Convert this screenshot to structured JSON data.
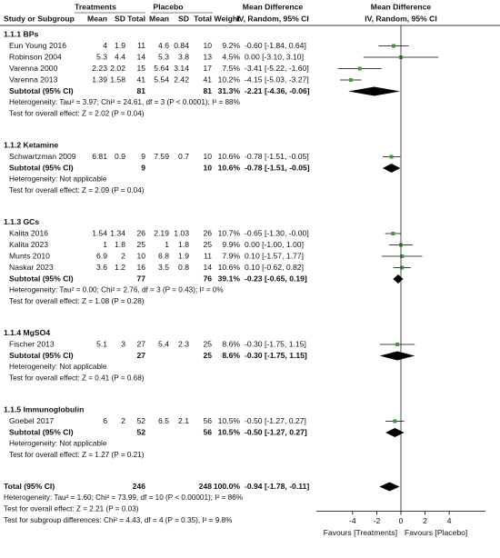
{
  "header": {
    "treat": "Treatments",
    "placebo": "Placebo",
    "md_title": "Mean Difference",
    "md_title_plot": "Mean Difference",
    "columns": [
      "Study or Subgroup",
      "Mean",
      "SD",
      "Total",
      "Mean",
      "SD",
      "Total",
      "Weight",
      "IV, Random, 95% CI",
      "IV, Random, 95% CI"
    ]
  },
  "subgroups": [
    {
      "title": "1.1.1 BPs",
      "studies": [
        {
          "study": "Eun Young 2016",
          "m1": "4",
          "sd1": "1.9",
          "n1": "11",
          "m2": "4.6",
          "sd2": "0.84",
          "n2": "10",
          "weight": "9.2%",
          "ci": "-0.60 [-1.84, 0.64]",
          "md": -0.6,
          "lo": -1.84,
          "hi": 0.64
        },
        {
          "study": "Robinson 2004",
          "m1": "5.3",
          "sd1": "4.4",
          "n1": "14",
          "m2": "5.3",
          "sd2": "3.8",
          "n2": "13",
          "weight": "4.5%",
          "ci": "0.00 [-3.10, 3.10]",
          "md": 0,
          "lo": -3.1,
          "hi": 3.1
        },
        {
          "study": "Varenna 2000",
          "m1": "2.23",
          "sd1": "2.02",
          "n1": "15",
          "m2": "5.64",
          "sd2": "3.14",
          "n2": "17",
          "weight": "7.5%",
          "ci": "-3.41 [-5.22, -1.60]",
          "md": -3.41,
          "lo": -5.22,
          "hi": -1.6
        },
        {
          "study": "Varenna 2013",
          "m1": "1.39",
          "sd1": "1.58",
          "n1": "41",
          "m2": "5.54",
          "sd2": "2.42",
          "n2": "41",
          "weight": "10.2%",
          "ci": "-4.15 [-5.03, -3.27]",
          "md": -4.15,
          "lo": -5.03,
          "hi": -3.27
        }
      ],
      "subtotal": {
        "label": "Subtotal (95% CI)",
        "n1": "81",
        "n2": "81",
        "weight": "31.3%",
        "ci": "-2.21 [-4.36, -0.06]",
        "md": -2.21,
        "lo": -4.36,
        "hi": -0.06
      },
      "heterogeneity": "Heterogeneity: Tau² = 3.97; Chi² = 24.61, df = 3 (P < 0.0001); I² = 88%",
      "overall": "Test for overall effect: Z = 2.02 (P = 0.04)"
    },
    {
      "title": "1.1.2 Ketamine",
      "studies": [
        {
          "study": "Schwartzman 2009",
          "m1": "6.81",
          "sd1": "0.9",
          "n1": "9",
          "m2": "7.59",
          "sd2": "0.7",
          "n2": "10",
          "weight": "10.6%",
          "ci": "-0.78 [-1.51, -0.05]",
          "md": -0.78,
          "lo": -1.51,
          "hi": -0.05
        }
      ],
      "subtotal": {
        "label": "Subtotal (95% CI)",
        "n1": "9",
        "n2": "10",
        "weight": "10.6%",
        "ci": "-0.78 [-1.51, -0.05]",
        "md": -0.78,
        "lo": -1.51,
        "hi": -0.05
      },
      "heterogeneity": "Heterogeneity: Not applicable",
      "overall": "Test for overall effect: Z = 2.09 (P = 0.04)"
    },
    {
      "title": "1.1.3 GCs",
      "studies": [
        {
          "study": "Kalita 2016",
          "m1": "1.54",
          "sd1": "1.34",
          "n1": "26",
          "m2": "2.19",
          "sd2": "1.03",
          "n2": "26",
          "weight": "10.7%",
          "ci": "-0.65 [-1.30, -0.00]",
          "md": -0.65,
          "lo": -1.3,
          "hi": 0
        },
        {
          "study": "Kalita 2023",
          "m1": "1",
          "sd1": "1.8",
          "n1": "25",
          "m2": "1",
          "sd2": "1.8",
          "n2": "25",
          "weight": "9.9%",
          "ci": "0.00 [-1.00, 1.00]",
          "md": 0,
          "lo": -1,
          "hi": 1
        },
        {
          "study": "Munts 2010",
          "m1": "6.9",
          "sd1": "2",
          "n1": "10",
          "m2": "6.8",
          "sd2": "1.9",
          "n2": "11",
          "weight": "7.9%",
          "ci": "0.10 [-1.57, 1.77]",
          "md": 0.1,
          "lo": -1.57,
          "hi": 1.77
        },
        {
          "study": "Naskar 2023",
          "m1": "3.6",
          "sd1": "1.2",
          "n1": "16",
          "m2": "3.5",
          "sd2": "0.8",
          "n2": "14",
          "weight": "10.6%",
          "ci": "0.10 [-0.62, 0.82]",
          "md": 0.1,
          "lo": -0.62,
          "hi": 0.82
        }
      ],
      "subtotal": {
        "label": "Subtotal (95% CI)",
        "n1": "77",
        "n2": "76",
        "weight": "39.1%",
        "ci": "-0.23 [-0.65, 0.19]",
        "md": -0.23,
        "lo": -0.65,
        "hi": 0.19
      },
      "heterogeneity": "Heterogeneity: Tau² = 0.00; Chi² = 2.76, df = 3 (P = 0.43); I² = 0%",
      "overall": "Test for overall effect: Z = 1.08 (P = 0.28)"
    },
    {
      "title": "1.1.4 MgSO4",
      "studies": [
        {
          "study": "Fischer 2013",
          "m1": "5.1",
          "sd1": "3",
          "n1": "27",
          "m2": "5.4",
          "sd2": "2.3",
          "n2": "25",
          "weight": "8.6%",
          "ci": "-0.30 [-1.75, 1.15]",
          "md": -0.3,
          "lo": -1.75,
          "hi": 1.15
        }
      ],
      "subtotal": {
        "label": "Subtotal (95% CI)",
        "n1": "27",
        "n2": "25",
        "weight": "8.6%",
        "ci": "-0.30 [-1.75, 1.15]",
        "md": -0.3,
        "lo": -1.75,
        "hi": 1.15
      },
      "heterogeneity": "Heterogeneity: Not applicable",
      "overall": "Test for overall effect: Z = 0.41 (P = 0.68)"
    },
    {
      "title": "1.1.5 Immunoglobulin",
      "studies": [
        {
          "study": "Goebel 2017",
          "m1": "6",
          "sd1": "2",
          "n1": "52",
          "m2": "6.5",
          "sd2": "2.1",
          "n2": "56",
          "weight": "10.5%",
          "ci": "-0.50 [-1.27, 0.27]",
          "md": -0.5,
          "lo": -1.27,
          "hi": 0.27
        }
      ],
      "subtotal": {
        "label": "Subtotal (95% CI)",
        "n1": "52",
        "n2": "56",
        "weight": "10.5%",
        "ci": "-0.50 [-1.27, 0.27]",
        "md": -0.5,
        "lo": -1.27,
        "hi": 0.27
      },
      "heterogeneity": "Heterogeneity: Not applicable",
      "overall": "Test for overall effect: Z = 1.27 (P = 0.21)"
    }
  ],
  "total": {
    "label": "Total (95% CI)",
    "n1": "246",
    "n2": "248",
    "weight": "100.0%",
    "ci": "-0.94 [-1.78, -0.11]",
    "md": -0.94,
    "lo": -1.78,
    "hi": -0.11,
    "heterogeneity": "Heterogeneity: Tau² = 1.60; Chi² = 73.99, df = 10 (P < 0.00001); I² = 86%",
    "overall": "Test for overall effect: Z = 2.21 (P = 0.03)",
    "subgroup_test": "Test for subgroup differences: Chi² = 4.43, df = 4 (P = 0.35), I² = 9.8%"
  },
  "axis": {
    "xlim": [
      -7,
      7
    ],
    "xticks": [
      -4,
      -2,
      0,
      2,
      4
    ],
    "left_label": "Favours [Treatments]",
    "right_label": "Favours [Placebo]",
    "square_color": "#3a9a3a",
    "ci_color": "#000000",
    "diamond_color": "#000000"
  }
}
